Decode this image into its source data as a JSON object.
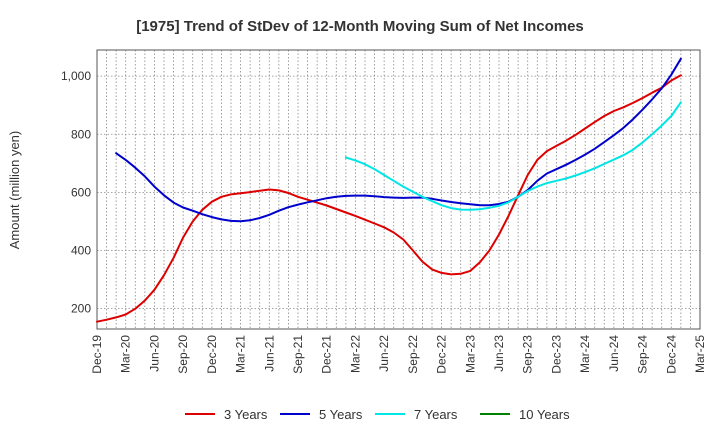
{
  "chart_data": {
    "type": "line",
    "title": "[1975]  Trend of StDev of 12-Month Moving Sum of Net Incomes",
    "xlabel": "",
    "ylabel": "Amount (million yen)",
    "ylim": [
      130,
      1090
    ],
    "yticks": [
      200,
      400,
      600,
      800,
      1000
    ],
    "ytick_labels": [
      "200",
      "400",
      "600",
      "800",
      "1,000"
    ],
    "xlim": [
      "2019-12",
      "2025-03"
    ],
    "xtick_labels": [
      "Dec-19",
      "Mar-20",
      "Jun-20",
      "Sep-20",
      "Dec-20",
      "Mar-21",
      "Jun-21",
      "Sep-21",
      "Dec-21",
      "Mar-22",
      "Jun-22",
      "Sep-22",
      "Dec-22",
      "Mar-23",
      "Jun-23",
      "Sep-23",
      "Dec-23",
      "Mar-24",
      "Jun-24",
      "Sep-24",
      "Dec-24",
      "Mar-25"
    ],
    "grid": true,
    "legend_position": "bottom",
    "series": [
      {
        "name": "3 Years",
        "color": "#dd0000",
        "points": [
          [
            "2019-12",
            155
          ],
          [
            "2020-01",
            162
          ],
          [
            "2020-02",
            170
          ],
          [
            "2020-03",
            180
          ],
          [
            "2020-04",
            200
          ],
          [
            "2020-05",
            228
          ],
          [
            "2020-06",
            265
          ],
          [
            "2020-07",
            315
          ],
          [
            "2020-08",
            375
          ],
          [
            "2020-09",
            445
          ],
          [
            "2020-10",
            500
          ],
          [
            "2020-11",
            540
          ],
          [
            "2020-12",
            568
          ],
          [
            "2021-01",
            585
          ],
          [
            "2021-02",
            593
          ],
          [
            "2021-03",
            597
          ],
          [
            "2021-04",
            601
          ],
          [
            "2021-05",
            606
          ],
          [
            "2021-06",
            610
          ],
          [
            "2021-07",
            607
          ],
          [
            "2021-08",
            598
          ],
          [
            "2021-09",
            585
          ],
          [
            "2021-10",
            575
          ],
          [
            "2021-11",
            565
          ],
          [
            "2021-12",
            555
          ],
          [
            "2022-01",
            543
          ],
          [
            "2022-02",
            531
          ],
          [
            "2022-03",
            519
          ],
          [
            "2022-04",
            506
          ],
          [
            "2022-05",
            493
          ],
          [
            "2022-06",
            480
          ],
          [
            "2022-07",
            462
          ],
          [
            "2022-08",
            438
          ],
          [
            "2022-09",
            400
          ],
          [
            "2022-10",
            362
          ],
          [
            "2022-11",
            335
          ],
          [
            "2022-12",
            323
          ],
          [
            "2023-01",
            318
          ],
          [
            "2023-02",
            320
          ],
          [
            "2023-03",
            330
          ],
          [
            "2023-04",
            360
          ],
          [
            "2023-05",
            400
          ],
          [
            "2023-06",
            455
          ],
          [
            "2023-07",
            520
          ],
          [
            "2023-08",
            590
          ],
          [
            "2023-09",
            660
          ],
          [
            "2023-10",
            712
          ],
          [
            "2023-11",
            742
          ],
          [
            "2023-12",
            760
          ],
          [
            "2024-01",
            778
          ],
          [
            "2024-02",
            798
          ],
          [
            "2024-03",
            820
          ],
          [
            "2024-04",
            842
          ],
          [
            "2024-05",
            863
          ],
          [
            "2024-06",
            880
          ],
          [
            "2024-07",
            893
          ],
          [
            "2024-08",
            908
          ],
          [
            "2024-09",
            925
          ],
          [
            "2024-10",
            943
          ],
          [
            "2024-11",
            960
          ],
          [
            "2024-12",
            985
          ],
          [
            "2025-01",
            1003
          ]
        ]
      },
      {
        "name": "5 Years",
        "color": "#0000cc",
        "points": [
          [
            "2020-02",
            735
          ],
          [
            "2020-03",
            712
          ],
          [
            "2020-04",
            685
          ],
          [
            "2020-05",
            655
          ],
          [
            "2020-06",
            620
          ],
          [
            "2020-07",
            590
          ],
          [
            "2020-08",
            565
          ],
          [
            "2020-09",
            548
          ],
          [
            "2020-10",
            537
          ],
          [
            "2020-11",
            525
          ],
          [
            "2020-12",
            515
          ],
          [
            "2021-01",
            507
          ],
          [
            "2021-02",
            502
          ],
          [
            "2021-03",
            501
          ],
          [
            "2021-04",
            504
          ],
          [
            "2021-05",
            512
          ],
          [
            "2021-06",
            523
          ],
          [
            "2021-07",
            537
          ],
          [
            "2021-08",
            549
          ],
          [
            "2021-09",
            558
          ],
          [
            "2021-10",
            566
          ],
          [
            "2021-11",
            573
          ],
          [
            "2021-12",
            580
          ],
          [
            "2022-01",
            585
          ],
          [
            "2022-02",
            588
          ],
          [
            "2022-03",
            589
          ],
          [
            "2022-04",
            589
          ],
          [
            "2022-05",
            587
          ],
          [
            "2022-06",
            584
          ],
          [
            "2022-07",
            582
          ],
          [
            "2022-08",
            581
          ],
          [
            "2022-09",
            582
          ],
          [
            "2022-10",
            582
          ],
          [
            "2022-11",
            578
          ],
          [
            "2022-12",
            572
          ],
          [
            "2023-01",
            567
          ],
          [
            "2023-02",
            563
          ],
          [
            "2023-03",
            559
          ],
          [
            "2023-04",
            556
          ],
          [
            "2023-05",
            556
          ],
          [
            "2023-06",
            560
          ],
          [
            "2023-07",
            568
          ],
          [
            "2023-08",
            585
          ],
          [
            "2023-09",
            608
          ],
          [
            "2023-10",
            640
          ],
          [
            "2023-11",
            665
          ],
          [
            "2023-12",
            680
          ],
          [
            "2024-01",
            695
          ],
          [
            "2024-02",
            712
          ],
          [
            "2024-03",
            730
          ],
          [
            "2024-04",
            750
          ],
          [
            "2024-05",
            773
          ],
          [
            "2024-06",
            797
          ],
          [
            "2024-07",
            822
          ],
          [
            "2024-08",
            852
          ],
          [
            "2024-09",
            885
          ],
          [
            "2024-10",
            920
          ],
          [
            "2024-11",
            958
          ],
          [
            "2024-12",
            1005
          ],
          [
            "2025-01",
            1060
          ]
        ]
      },
      {
        "name": "7 Years",
        "color": "#00e5e5",
        "points": [
          [
            "2022-02",
            720
          ],
          [
            "2022-03",
            710
          ],
          [
            "2022-04",
            697
          ],
          [
            "2022-05",
            680
          ],
          [
            "2022-06",
            660
          ],
          [
            "2022-07",
            640
          ],
          [
            "2022-08",
            620
          ],
          [
            "2022-09",
            602
          ],
          [
            "2022-10",
            585
          ],
          [
            "2022-11",
            570
          ],
          [
            "2022-12",
            556
          ],
          [
            "2023-01",
            546
          ],
          [
            "2023-02",
            541
          ],
          [
            "2023-03",
            540
          ],
          [
            "2023-04",
            542
          ],
          [
            "2023-05",
            547
          ],
          [
            "2023-06",
            554
          ],
          [
            "2023-07",
            566
          ],
          [
            "2023-08",
            585
          ],
          [
            "2023-09",
            605
          ],
          [
            "2023-10",
            620
          ],
          [
            "2023-11",
            632
          ],
          [
            "2023-12",
            640
          ],
          [
            "2024-01",
            648
          ],
          [
            "2024-02",
            658
          ],
          [
            "2024-03",
            670
          ],
          [
            "2024-04",
            683
          ],
          [
            "2024-05",
            698
          ],
          [
            "2024-06",
            713
          ],
          [
            "2024-07",
            728
          ],
          [
            "2024-08",
            747
          ],
          [
            "2024-09",
            772
          ],
          [
            "2024-10",
            800
          ],
          [
            "2024-11",
            830
          ],
          [
            "2024-12",
            863
          ],
          [
            "2025-01",
            910
          ]
        ]
      },
      {
        "name": "10 Years",
        "color": "#008000",
        "points": []
      }
    ]
  }
}
